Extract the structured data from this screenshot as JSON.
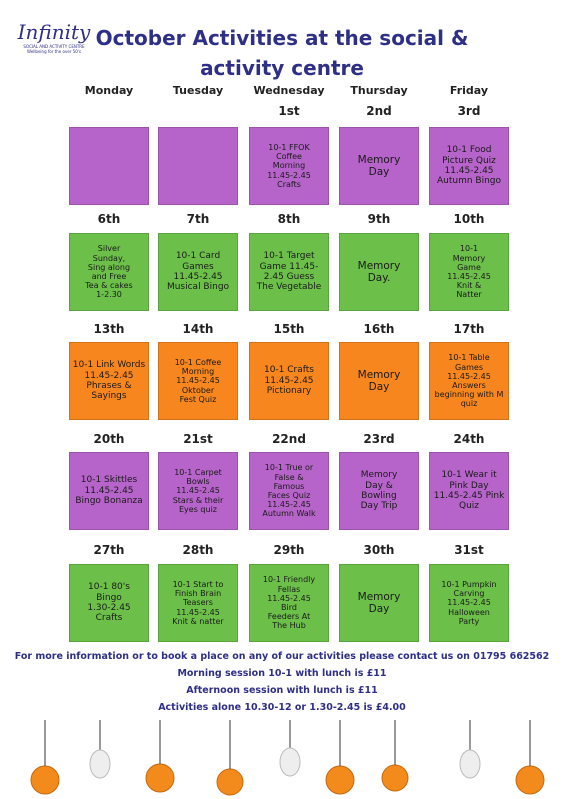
{
  "logo": {
    "name": "Infinity",
    "line1": "SOCIAL AND ACTIVITY CENTRE",
    "line2": "Wellbeing for the over 50's"
  },
  "title": [
    "October Activities at the social &",
    "activity centre"
  ],
  "days": [
    "Monday",
    "Tuesday",
    "Wednesday",
    "Thursday",
    "Friday"
  ],
  "weeks": [
    {
      "color": "#b664c9",
      "cells": [
        {
          "date": null,
          "lines": []
        },
        {
          "date": null,
          "lines": []
        },
        {
          "date": "1st",
          "lines": [
            "10-1 FFOK",
            "Coffee",
            "Morning",
            "11.45-2.45",
            "Crafts"
          ]
        },
        {
          "date": "2nd",
          "lines": [
            "Memory",
            "Day"
          ]
        },
        {
          "date": "3rd",
          "lines": [
            "10-1 Food",
            "Picture Quiz",
            "11.45-2.45",
            "Autumn Bingo"
          ]
        }
      ]
    },
    {
      "color": "#6cc04a",
      "cells": [
        {
          "date": "6th",
          "lines": [
            "Silver",
            "Sunday,",
            "Sing along",
            "and Free",
            "Tea & cakes",
            "1-2.30"
          ]
        },
        {
          "date": "7th",
          "lines": [
            "10-1 Card",
            "Games",
            "11.45-2.45",
            "Musical Bingo"
          ]
        },
        {
          "date": "8th",
          "lines": [
            "10-1 Target",
            "Game 11.45-",
            "2.45 Guess",
            "The Vegetable"
          ]
        },
        {
          "date": "9th",
          "lines": [
            "Memory",
            "Day."
          ]
        },
        {
          "date": "10th",
          "lines": [
            "10-1",
            "Memory",
            "Game",
            "11.45-2.45",
            "Knit &",
            "Natter"
          ]
        }
      ]
    },
    {
      "color": "#f7861e",
      "cells": [
        {
          "date": "13th",
          "lines": [
            "10-1 Link Words",
            "11.45-2.45",
            "Phrases &",
            "Sayings"
          ]
        },
        {
          "date": "14th",
          "lines": [
            "10-1 Coffee",
            "Morning",
            "11.45-2.45",
            "Oktober",
            "Fest Quiz"
          ]
        },
        {
          "date": "15th",
          "lines": [
            "10-1 Crafts",
            "11.45-2.45",
            "Pictionary"
          ]
        },
        {
          "date": "16th",
          "lines": [
            "Memory",
            "Day"
          ]
        },
        {
          "date": "17th",
          "lines": [
            "10-1 Table",
            "Games",
            "11.45-2.45",
            "Answers",
            "beginning with M",
            "quiz"
          ]
        }
      ]
    },
    {
      "color": "#b664c9",
      "cells": [
        {
          "date": "20th",
          "lines": [
            "10-1 Skittles",
            "11.45-2.45",
            "Bingo Bonanza"
          ]
        },
        {
          "date": "21st",
          "lines": [
            "10-1 Carpet",
            "Bowls",
            "11.45-2.45",
            "Stars & their",
            "Eyes quiz"
          ]
        },
        {
          "date": "22nd",
          "lines": [
            "10-1 True or",
            "False &",
            "Famous",
            "Faces Quiz",
            "11.45-2.45",
            "Autumn Walk"
          ]
        },
        {
          "date": "23rd",
          "lines": [
            "Memory",
            "Day &",
            "Bowling",
            "Day Trip"
          ]
        },
        {
          "date": "24th",
          "lines": [
            "10-1 Wear it",
            "Pink Day",
            "11.45-2.45 Pink",
            "Quiz"
          ]
        }
      ]
    },
    {
      "color": "#6cc04a",
      "cells": [
        {
          "date": "27th",
          "lines": [
            "10-1 80's",
            "Bingo",
            "1.30-2.45",
            "Crafts"
          ]
        },
        {
          "date": "28th",
          "lines": [
            "10-1 Start to",
            "Finish Brain",
            "Teasers",
            "11.45-2.45",
            "Knit & natter"
          ]
        },
        {
          "date": "29th",
          "lines": [
            "10-1 Friendly",
            "Fellas",
            "11.45-2.45",
            "Bird",
            "Feeders At",
            "The Hub"
          ]
        },
        {
          "date": "30th",
          "lines": [
            "Memory",
            "Day"
          ]
        },
        {
          "date": "31st",
          "lines": [
            "10-1 Pumpkin",
            "Carving",
            "11.45-2.45",
            "Halloween",
            "Party"
          ]
        }
      ]
    }
  ],
  "footer": [
    "For more information or to book a place on any of our activities please contact us on 01795 662562",
    "Morning session 10-1 with lunch is £11",
    "Afternoon session with lunch is £11",
    "Activities alone 10.30-12 or 1.30-2.45 is £4.00"
  ]
}
